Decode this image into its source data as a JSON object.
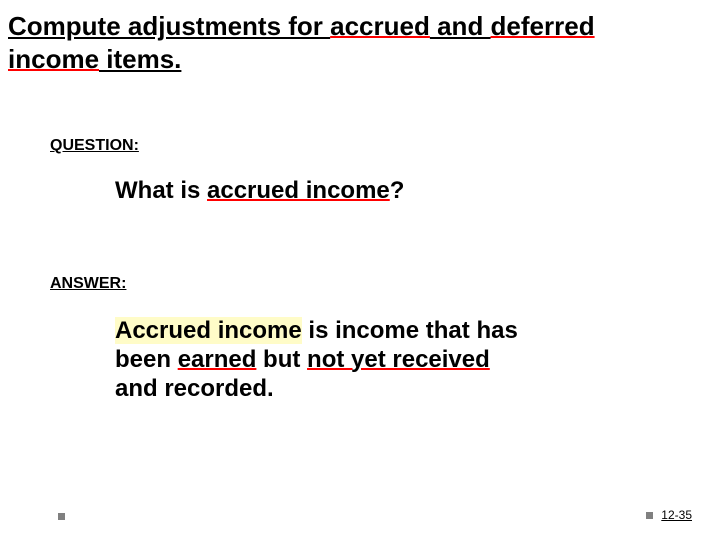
{
  "title": {
    "part1": "Compute adjustments for ",
    "accrued": "accrued",
    "and": " and ",
    "deferred": "deferred",
    "income": "income",
    "items": " items."
  },
  "question": {
    "label": "QUESTION:",
    "pre": "What is ",
    "emph": "accrued income",
    "post": "?"
  },
  "answer": {
    "label": "ANSWER:",
    "hl": "Accrued income",
    "line1_rest": " is income that has",
    "line2_pre": "been ",
    "earned": "earned",
    "line2_mid": " but ",
    "notyet": "not yet received",
    "line3": "and recorded."
  },
  "footer": {
    "page": "12-35"
  },
  "colors": {
    "red": "#ff0000",
    "highlight": "#fffcc8",
    "bullet": "#808080",
    "text": "#000000"
  }
}
